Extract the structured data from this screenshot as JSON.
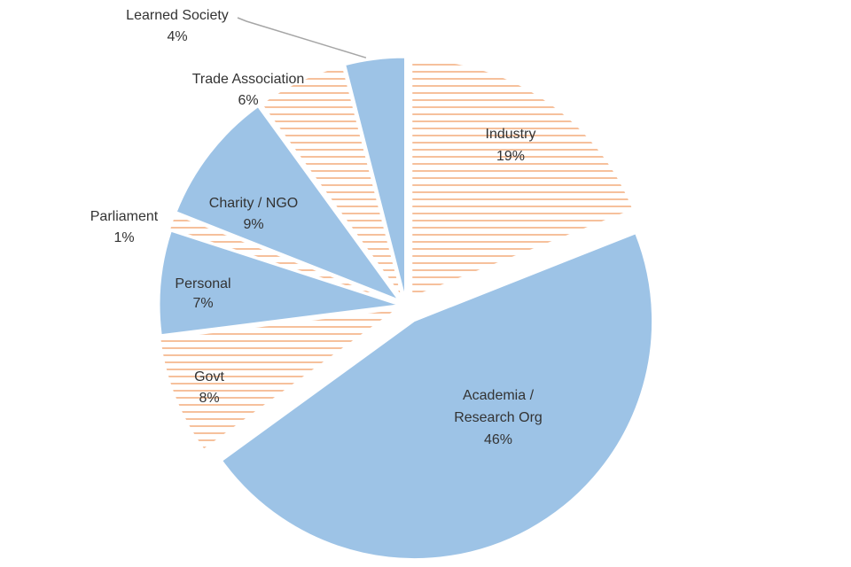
{
  "chart_data": {
    "type": "pie",
    "title": "",
    "start_angle_deg": 0,
    "direction": "clockwise",
    "colors": {
      "solid": "#9dc3e6",
      "hatch_line": "#f4b183",
      "leader_line": "#a6a6a6"
    },
    "slices": [
      {
        "label": "Industry",
        "value_label": "19%",
        "value": 19,
        "fill": "hatch",
        "exploded": true
      },
      {
        "label": "Academia / Research Org",
        "label_lines": [
          "Academia /",
          "Research Org"
        ],
        "value_label": "46%",
        "value": 46,
        "fill": "solid",
        "exploded": true
      },
      {
        "label": "Govt",
        "value_label": "8%",
        "value": 8,
        "fill": "hatch",
        "exploded": true
      },
      {
        "label": "Personal",
        "value_label": "7%",
        "value": 7,
        "fill": "solid",
        "exploded": true
      },
      {
        "label": "Parliament",
        "value_label": "1%",
        "value": 1,
        "fill": "hatch",
        "exploded": true,
        "outside_label": true
      },
      {
        "label": "Charity / NGO",
        "value_label": "9%",
        "value": 9,
        "fill": "solid",
        "exploded": true
      },
      {
        "label": "Trade Association",
        "value_label": "6%",
        "value": 6,
        "fill": "hatch",
        "exploded": true,
        "outside_label": true
      },
      {
        "label": "Learned Society",
        "value_label": "4%",
        "value": 4,
        "fill": "solid",
        "exploded": true,
        "outside_label": true,
        "leader_line": true
      }
    ]
  }
}
